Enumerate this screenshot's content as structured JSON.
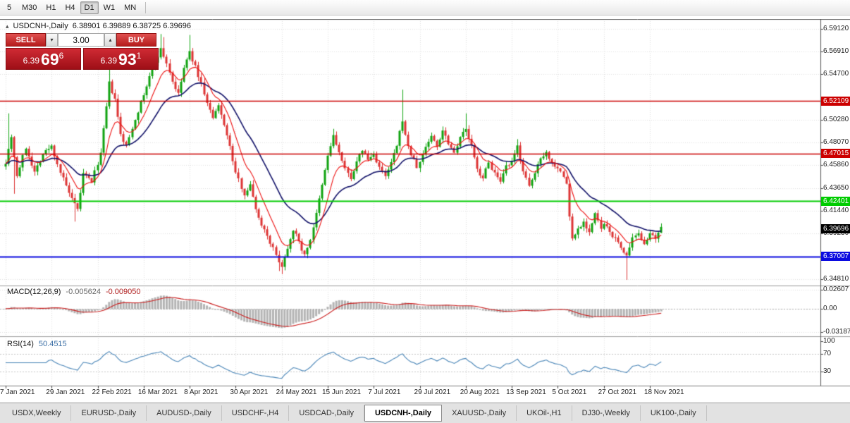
{
  "toolbar": {
    "periods": [
      {
        "label": "5",
        "active": false
      },
      {
        "label": "M30",
        "active": false
      },
      {
        "label": "H1",
        "active": false
      },
      {
        "label": "H4",
        "active": false
      },
      {
        "label": "D1",
        "active": true
      },
      {
        "label": "W1",
        "active": false
      },
      {
        "label": "MN",
        "active": false
      }
    ]
  },
  "trade_panel": {
    "sell_label": "SELL",
    "buy_label": "BUY",
    "volume": "3.00",
    "volume_down_glyph": "▾",
    "volume_up_glyph": "▴",
    "collapse_glyph": "▴",
    "sell_price": {
      "prefix": "6.39",
      "big": "69",
      "sup": "6"
    },
    "buy_price": {
      "prefix": "6.39",
      "big": "93",
      "sup": "1"
    }
  },
  "colors": {
    "bull": "#0fa30f",
    "bear": "#dd3434",
    "grid": "#e0e0e0",
    "separator": "#9a9a9a",
    "scale_line": "#555555",
    "macd_hist": "#b4b4b4",
    "macd_signal": "#cc2222",
    "rsi_line": "#4a86b8"
  },
  "chart_data": {
    "type": "candlestick",
    "title": "USDCNH-,Daily",
    "ohlc_text": "6.38901 6.39889 6.38725 6.39696",
    "ohlc_display": {
      "open": "6.38901",
      "high": "6.39889",
      "low": "6.38725",
      "close": "6.39696"
    },
    "ylim": [
      6.344,
      6.5985
    ],
    "candle_count": 229,
    "y_axis": [
      {
        "v": 6.5912,
        "label": "6.59120"
      },
      {
        "v": 6.5691,
        "label": "6.56910"
      },
      {
        "v": 6.547,
        "label": "6.54700"
      },
      {
        "v": 6.5028,
        "label": "6.50280"
      },
      {
        "v": 6.4807,
        "label": "6.48070"
      },
      {
        "v": 6.4586,
        "label": "6.45860"
      },
      {
        "v": 6.4365,
        "label": "6.43650"
      },
      {
        "v": 6.4144,
        "label": "6.41440"
      },
      {
        "v": 6.3923,
        "label": "6.39230"
      },
      {
        "v": 6.3481,
        "label": "6.34810"
      }
    ],
    "x_ticks": [
      {
        "label": "7 Jan 2021",
        "i": 0
      },
      {
        "label": "29 Jan 2021",
        "i": 16
      },
      {
        "label": "22 Feb 2021",
        "i": 32
      },
      {
        "label": "16 Mar 2021",
        "i": 48
      },
      {
        "label": "8 Apr 2021",
        "i": 64
      },
      {
        "label": "30 Apr 2021",
        "i": 80
      },
      {
        "label": "24 May 2021",
        "i": 96
      },
      {
        "label": "15 Jun 2021",
        "i": 112
      },
      {
        "label": "7 Jul 2021",
        "i": 128
      },
      {
        "label": "29 Jul 2021",
        "i": 144
      },
      {
        "label": "20 Aug 2021",
        "i": 160
      },
      {
        "label": "13 Sep 2021",
        "i": 176
      },
      {
        "label": "5 Oct 2021",
        "i": 192
      },
      {
        "label": "27 Oct 2021",
        "i": 208
      },
      {
        "label": "18 Nov 2021",
        "i": 224
      }
    ],
    "levels": [
      {
        "price": 6.52109,
        "label": "6.52109",
        "color": "#cc0000",
        "width": 1.6
      },
      {
        "price": 6.47015,
        "label": "6.47015",
        "color": "#cc0000",
        "width": 1.6
      },
      {
        "price": 6.42401,
        "label": "6.42401",
        "color": "#00cc00",
        "width": 2
      },
      {
        "price": 6.37007,
        "label": "6.37007",
        "color": "#0a0ae0",
        "width": 2
      }
    ],
    "current_price": {
      "value": 6.39696,
      "label": "6.39696",
      "color": "#000000"
    },
    "ma": [
      {
        "period": 9,
        "color": "#ee1111"
      },
      {
        "period": 25,
        "color": "#15156b"
      }
    ],
    "close_waypoints": [
      [
        0,
        6.462
      ],
      [
        2,
        6.487
      ],
      [
        4,
        6.448
      ],
      [
        7,
        6.476
      ],
      [
        10,
        6.452
      ],
      [
        13,
        6.47
      ],
      [
        16,
        6.477
      ],
      [
        19,
        6.452
      ],
      [
        23,
        6.425
      ],
      [
        25,
        6.415
      ],
      [
        27,
        6.45
      ],
      [
        30,
        6.443
      ],
      [
        33,
        6.47
      ],
      [
        36,
        6.538
      ],
      [
        38,
        6.522
      ],
      [
        40,
        6.488
      ],
      [
        42,
        6.477
      ],
      [
        45,
        6.504
      ],
      [
        48,
        6.527
      ],
      [
        51,
        6.553
      ],
      [
        54,
        6.571
      ],
      [
        56,
        6.558
      ],
      [
        58,
        6.54
      ],
      [
        60,
        6.527
      ],
      [
        62,
        6.553
      ],
      [
        64,
        6.568
      ],
      [
        66,
        6.554
      ],
      [
        68,
        6.538
      ],
      [
        70,
        6.519
      ],
      [
        72,
        6.504
      ],
      [
        74,
        6.516
      ],
      [
        76,
        6.499
      ],
      [
        78,
        6.476
      ],
      [
        80,
        6.451
      ],
      [
        83,
        6.431
      ],
      [
        85,
        6.439
      ],
      [
        88,
        6.407
      ],
      [
        91,
        6.391
      ],
      [
        94,
        6.371
      ],
      [
        96,
        6.361
      ],
      [
        98,
        6.379
      ],
      [
        100,
        6.397
      ],
      [
        102,
        6.384
      ],
      [
        104,
        6.371
      ],
      [
        106,
        6.387
      ],
      [
        108,
        6.411
      ],
      [
        110,
        6.439
      ],
      [
        112,
        6.468
      ],
      [
        114,
        6.487
      ],
      [
        116,
        6.471
      ],
      [
        118,
        6.454
      ],
      [
        120,
        6.447
      ],
      [
        122,
        6.461
      ],
      [
        124,
        6.474
      ],
      [
        126,
        6.464
      ],
      [
        128,
        6.469
      ],
      [
        130,
        6.457
      ],
      [
        132,
        6.447
      ],
      [
        134,
        6.461
      ],
      [
        136,
        6.477
      ],
      [
        138,
        6.503
      ],
      [
        139,
        6.487
      ],
      [
        141,
        6.469
      ],
      [
        143,
        6.457
      ],
      [
        144,
        6.461
      ],
      [
        146,
        6.477
      ],
      [
        148,
        6.487
      ],
      [
        150,
        6.477
      ],
      [
        152,
        6.493
      ],
      [
        154,
        6.481
      ],
      [
        156,
        6.471
      ],
      [
        158,
        6.487
      ],
      [
        160,
        6.493
      ],
      [
        162,
        6.477
      ],
      [
        164,
        6.454
      ],
      [
        166,
        6.447
      ],
      [
        168,
        6.461
      ],
      [
        170,
        6.451
      ],
      [
        172,
        6.441
      ],
      [
        174,
        6.457
      ],
      [
        176,
        6.461
      ],
      [
        178,
        6.477
      ],
      [
        180,
        6.454
      ],
      [
        182,
        6.437
      ],
      [
        184,
        6.451
      ],
      [
        186,
        6.467
      ],
      [
        188,
        6.471
      ],
      [
        190,
        6.461
      ],
      [
        192,
        6.457
      ],
      [
        194,
        6.447
      ],
      [
        195,
        6.441
      ],
      [
        196,
        6.409
      ],
      [
        197,
        6.387
      ],
      [
        199,
        6.397
      ],
      [
        201,
        6.404
      ],
      [
        203,
        6.394
      ],
      [
        205,
        6.411
      ],
      [
        207,
        6.397
      ],
      [
        208,
        6.401
      ],
      [
        210,
        6.394
      ],
      [
        212,
        6.387
      ],
      [
        214,
        6.379
      ],
      [
        216,
        6.371
      ],
      [
        217,
        6.377
      ],
      [
        218,
        6.387
      ],
      [
        220,
        6.391
      ],
      [
        222,
        6.384
      ],
      [
        224,
        6.391
      ],
      [
        226,
        6.387
      ],
      [
        228,
        6.397
      ]
    ],
    "spikes": [
      {
        "i": 1,
        "h": 6.509
      },
      {
        "i": 3,
        "l": 6.431
      },
      {
        "i": 24,
        "l": 6.404
      },
      {
        "i": 36,
        "h": 6.557
      },
      {
        "i": 54,
        "h": 6.586
      },
      {
        "i": 55,
        "h": 6.583
      },
      {
        "i": 64,
        "h": 6.585
      },
      {
        "i": 95,
        "l": 6.356
      },
      {
        "i": 96,
        "l": 6.353
      },
      {
        "i": 114,
        "h": 6.494
      },
      {
        "i": 138,
        "h": 6.532
      },
      {
        "i": 160,
        "h": 6.509
      },
      {
        "i": 178,
        "h": 6.484
      },
      {
        "i": 216,
        "l": 6.3475
      }
    ],
    "indicators": [
      {
        "name": "MACD",
        "display": "MACD(12,26,9)",
        "values": [
          "-0.005624",
          "-0.009050"
        ],
        "range": [
          -0.0345,
          0.0285
        ],
        "y_labels": [
          {
            "v": 0.02607,
            "label": "0.02607"
          },
          {
            "v": 0,
            "label": "0.00"
          },
          {
            "v": -0.03187,
            "label": "-0.03187"
          }
        ]
      },
      {
        "name": "RSI",
        "display": "RSI(14)",
        "value": "50.4515",
        "levels": [
          70,
          30
        ],
        "y_labels": [
          {
            "v": 100,
            "label": "100"
          },
          {
            "v": 70,
            "label": "70"
          },
          {
            "v": 30,
            "label": "30"
          }
        ]
      }
    ]
  },
  "tabs": [
    {
      "label": "USDX,Weekly",
      "active": false
    },
    {
      "label": "EURUSD-,Daily",
      "active": false
    },
    {
      "label": "AUDUSD-,Daily",
      "active": false
    },
    {
      "label": "USDCHF-,H4",
      "active": false
    },
    {
      "label": "USDCAD-,Daily",
      "active": false
    },
    {
      "label": "USDCNH-,Daily",
      "active": true
    },
    {
      "label": "XAUUSD-,Daily",
      "active": false
    },
    {
      "label": "UKOil-,H1",
      "active": false
    },
    {
      "label": "DJ30-,Weekly",
      "active": false
    },
    {
      "label": "UK100-,Daily",
      "active": false
    }
  ]
}
